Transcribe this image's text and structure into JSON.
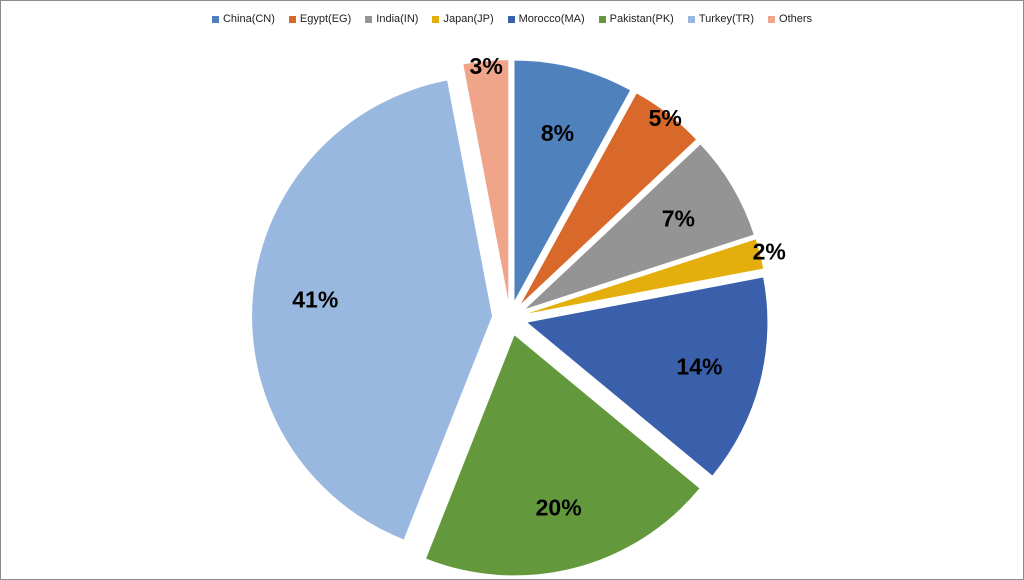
{
  "chart_data": {
    "type": "pie",
    "title": "",
    "legend_position": "top",
    "exploded": true,
    "slices": [
      {
        "name": "China(CN)",
        "value": 8,
        "label": "8%",
        "color": "#4f81bd"
      },
      {
        "name": "Egypt(EG)",
        "value": 5,
        "label": "5%",
        "color": "#d8692a"
      },
      {
        "name": "India(IN)",
        "value": 7,
        "label": "7%",
        "color": "#949494"
      },
      {
        "name": "Japan(JP)",
        "value": 2,
        "label": "2%",
        "color": "#e4ae0c"
      },
      {
        "name": "Morocco(MA)",
        "value": 14,
        "label": "14%",
        "color": "#3a60ab"
      },
      {
        "name": "Pakistan(PK)",
        "value": 20,
        "label": "20%",
        "color": "#63993c"
      },
      {
        "name": "Turkey(TR)",
        "value": 41,
        "label": "41%",
        "color": "#99b8e0"
      },
      {
        "name": "Others",
        "value": 3,
        "label": "3%",
        "color": "#f0a58a"
      }
    ]
  }
}
